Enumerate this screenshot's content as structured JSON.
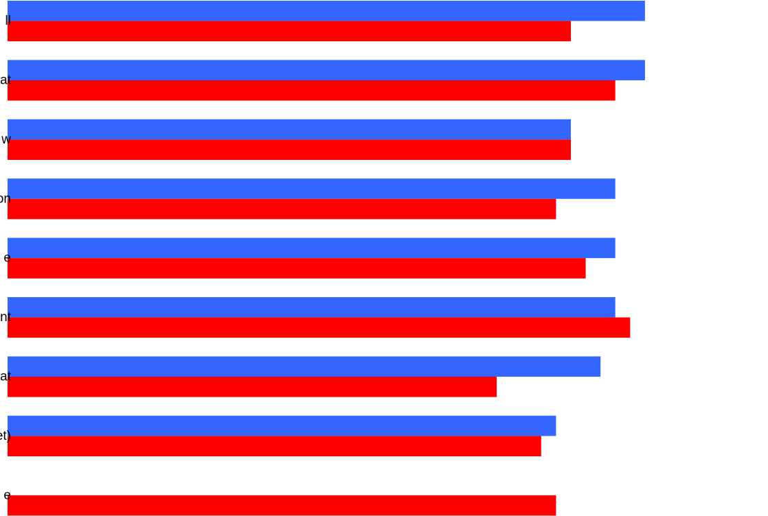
{
  "chart_data": {
    "type": "bar",
    "orientation": "horizontal",
    "title": "",
    "xlabel": "",
    "ylabel": "",
    "categories": [
      "ll",
      "at",
      "w",
      "on",
      "e",
      "nt",
      "at",
      "et)",
      "e"
    ],
    "series": [
      {
        "color": "#3366ff",
        "values": [
          43,
          43,
          38,
          41,
          41,
          41,
          40,
          37,
          null
        ]
      },
      {
        "color": "#ff0000",
        "values": [
          38,
          41,
          38,
          37,
          39,
          42,
          33,
          36,
          37
        ]
      }
    ],
    "xlim": [
      0,
      51.3
    ],
    "grid": false,
    "legend": false
  }
}
